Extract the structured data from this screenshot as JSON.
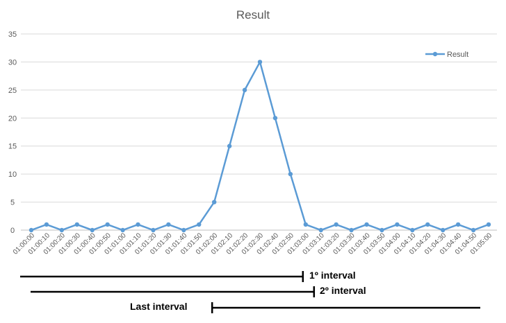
{
  "chart_data": {
    "type": "line",
    "title": "Result",
    "xlabel": "",
    "ylabel": "",
    "ylim": [
      0,
      35
    ],
    "yticks": [
      0,
      5,
      10,
      15,
      20,
      25,
      30,
      35
    ],
    "grid": true,
    "legend_position": "top-right",
    "categories": [
      "01:00:00",
      "01:00:10",
      "01:00:20",
      "01:00:30",
      "01:00:40",
      "01:00:50",
      "01:01:00",
      "01:01:10",
      "01:01:20",
      "01:01:30",
      "01:01:40",
      "01:01:50",
      "01:02:00",
      "01:02:10",
      "01:02:20",
      "01:02:30",
      "01:02:40",
      "01:02:50",
      "01:03:00",
      "01:03:10",
      "01:03:20",
      "01:03:30",
      "01:03:40",
      "01:03:50",
      "01:04:00",
      "01:04:10",
      "01:04:20",
      "01:04:30",
      "01:04:40",
      "01:04:50",
      "01:05:00"
    ],
    "series": [
      {
        "name": "Result",
        "color": "#5B9BD5",
        "values": [
          0,
          1,
          0,
          1,
          0,
          1,
          0,
          1,
          0,
          1,
          0,
          1,
          5,
          15,
          25,
          30,
          20,
          10,
          1,
          0,
          1,
          0,
          1,
          0,
          1,
          0,
          1,
          0,
          1,
          0,
          1
        ]
      }
    ]
  },
  "intervals": [
    {
      "label": "1º interval",
      "start": "01:00:00",
      "end": "01:03:00"
    },
    {
      "label": "2º interval",
      "start": "01:00:00",
      "end": "01:03:00"
    },
    {
      "label": "Last interval",
      "start": "01:02:00",
      "end": "01:05:00"
    }
  ]
}
